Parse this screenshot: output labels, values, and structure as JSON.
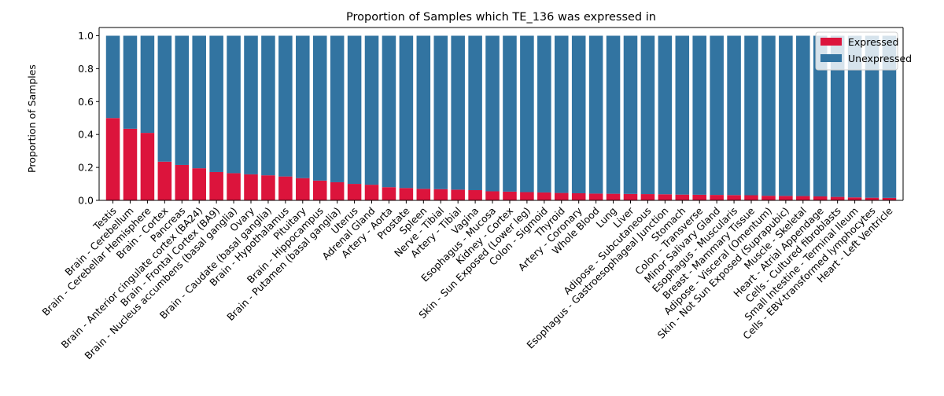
{
  "chart_data": {
    "type": "bar",
    "stacked": true,
    "title": "Proportion of Samples which TE_136 was expressed in",
    "xlabel": "",
    "ylabel": "Proportion of Samples",
    "ylim": [
      0,
      1.05
    ],
    "yticks": [
      0.0,
      0.2,
      0.4,
      0.6,
      0.8,
      1.0
    ],
    "ytick_labels": [
      "0.0",
      "0.2",
      "0.4",
      "0.6",
      "0.8",
      "1.0"
    ],
    "grid": false,
    "legend_position": "top-right",
    "categories": [
      "Testis",
      "Brain - Cerebellum",
      "Brain - Cerebellar Hemisphere",
      "Brain - Cortex",
      "Pancreas",
      "Brain - Anterior cingulate cortex (BA24)",
      "Brain - Frontal Cortex (BA9)",
      "Brain - Nucleus accumbens (basal ganglia)",
      "Ovary",
      "Brain - Caudate (basal ganglia)",
      "Brain - Hypothalamus",
      "Pituitary",
      "Brain - Hippocampus",
      "Brain - Putamen (basal ganglia)",
      "Uterus",
      "Adrenal Gland",
      "Artery - Aorta",
      "Prostate",
      "Spleen",
      "Nerve - Tibial",
      "Artery - Tibial",
      "Vagina",
      "Esophagus - Mucosa",
      "Kidney - Cortex",
      "Skin - Sun Exposed (Lower leg)",
      "Colon - Sigmoid",
      "Thyroid",
      "Artery - Coronary",
      "Whole Blood",
      "Lung",
      "Liver",
      "Adipose - Subcutaneous",
      "Esophagus - Gastroesophageal Junction",
      "Stomach",
      "Colon - Transverse",
      "Minor Salivary Gland",
      "Esophagus - Muscularis",
      "Breast - Mammary Tissue",
      "Adipose - Visceral (Omentum)",
      "Skin - Not Sun Exposed (Suprapubic)",
      "Muscle - Skeletal",
      "Heart - Atrial Appendage",
      "Cells - Cultured fibroblasts",
      "Small Intestine - Terminal Ileum",
      "Cells - EBV-transformed lymphocytes",
      "Heart - Left Ventricle"
    ],
    "series": [
      {
        "name": "Expressed",
        "color": "#dc143c",
        "values": [
          0.5,
          0.435,
          0.41,
          0.235,
          0.215,
          0.195,
          0.172,
          0.165,
          0.158,
          0.152,
          0.145,
          0.135,
          0.12,
          0.11,
          0.1,
          0.095,
          0.08,
          0.075,
          0.07,
          0.068,
          0.065,
          0.062,
          0.055,
          0.053,
          0.05,
          0.048,
          0.045,
          0.043,
          0.041,
          0.04,
          0.039,
          0.038,
          0.037,
          0.035,
          0.034,
          0.033,
          0.032,
          0.031,
          0.028,
          0.027,
          0.026,
          0.024,
          0.021,
          0.018,
          0.016,
          0.015
        ]
      },
      {
        "name": "Unexpressed",
        "color": "#3274a1",
        "values": [
          0.5,
          0.565,
          0.59,
          0.765,
          0.785,
          0.805,
          0.828,
          0.835,
          0.842,
          0.848,
          0.855,
          0.865,
          0.88,
          0.89,
          0.9,
          0.905,
          0.92,
          0.925,
          0.93,
          0.932,
          0.935,
          0.938,
          0.945,
          0.947,
          0.95,
          0.952,
          0.955,
          0.957,
          0.959,
          0.96,
          0.961,
          0.962,
          0.963,
          0.965,
          0.966,
          0.967,
          0.968,
          0.969,
          0.972,
          0.973,
          0.974,
          0.976,
          0.979,
          0.982,
          0.984,
          0.985
        ]
      }
    ]
  }
}
